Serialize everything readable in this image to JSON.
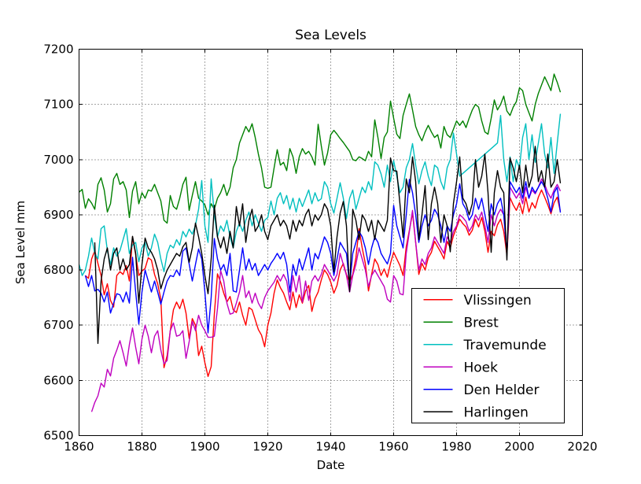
{
  "figure": {
    "title": "Sea Levels",
    "xlabel": "Date",
    "ylabel": "Sea Level mm"
  },
  "chart_data": {
    "type": "line",
    "title": "Sea Levels",
    "xlabel": "Date",
    "ylabel": "Sea Level mm",
    "xlim": [
      1860,
      2020
    ],
    "ylim": [
      6500,
      7200
    ],
    "xticks": [
      1860,
      1880,
      1900,
      1920,
      1940,
      1960,
      1980,
      2000,
      2020
    ],
    "yticks": [
      6500,
      6600,
      6700,
      6800,
      6900,
      7000,
      7100,
      7200
    ],
    "grid": true,
    "grid_style": "dotted",
    "legend_position": "lower right inside",
    "series": [
      {
        "name": "Vlissingen",
        "color": "#ff0000",
        "start_year": 1862,
        "values": [
          6790,
          6785,
          6820,
          6835,
          6812,
          6790,
          6755,
          6775,
          6745,
          6733,
          6790,
          6797,
          6792,
          6808,
          6780,
          6860,
          6828,
          6790,
          6798,
          6803,
          6822,
          6818,
          6792,
          6775,
          6747,
          6623,
          6645,
          6690,
          6728,
          6742,
          6730,
          6747,
          6722,
          6676,
          6712,
          6700,
          6645,
          6662,
          6632,
          6607,
          6625,
          6720,
          6793,
          6778,
          6758,
          6742,
          6752,
          6728,
          6723,
          6742,
          6718,
          6700,
          6732,
          6728,
          6710,
          6692,
          6682,
          6661,
          6700,
          6722,
          6758,
          6782,
          6768,
          6758,
          6742,
          6728,
          6760,
          6732,
          6755,
          6740,
          6762,
          6772,
          6725,
          6748,
          6760,
          6782,
          6800,
          6792,
          6778,
          6758,
          6772,
          6800,
          6812,
          6792,
          6778,
          6792,
          6822,
          6875,
          6840,
          6812,
          6762,
          6792,
          6820,
          6810,
          6790,
          6802,
          6787,
          6812,
          6832,
          6820,
          6808,
          6790,
          6842,
          6872,
          6903,
          6850,
          6792,
          6812,
          6800,
          6822,
          6832,
          6852,
          6842,
          6832,
          6820,
          6852,
          6840,
          6862,
          6877,
          6892,
          6884,
          6878,
          6863,
          6872,
          6892,
          6878,
          6895,
          6870,
          6832,
          6870,
          6862,
          6882,
          6892,
          6870,
          6827,
          6931,
          6918,
          6908,
          6922,
          6902,
          6932,
          6905,
          6922,
          6912,
          6932,
          6945,
          6932,
          6918,
          6902,
          6922,
          6932,
          6906
        ]
      },
      {
        "name": "Brest",
        "color": "#008000",
        "start_year": 1860,
        "values": [
          6941,
          6946,
          6912,
          6929,
          6921,
          6910,
          6955,
          6967,
          6945,
          6905,
          6920,
          6965,
          6975,
          6955,
          6960,
          6945,
          6895,
          6943,
          6960,
          6920,
          6940,
          6930,
          6945,
          6943,
          6955,
          6940,
          6925,
          6890,
          6885,
          6935,
          6915,
          6910,
          6930,
          6955,
          6968,
          6908,
          6935,
          6960,
          6930,
          6925,
          6918,
          6900,
          6920,
          6910,
          6930,
          6940,
          6955,
          6935,
          6950,
          6985,
          7000,
          7030,
          7045,
          7060,
          7050,
          7065,
          7040,
          7010,
          6985,
          6950,
          6948,
          6950,
          6985,
          7018,
          6990,
          6995,
          6980,
          7020,
          7005,
          6975,
          7005,
          7020,
          7010,
          7015,
          7005,
          6990,
          7064,
          7025,
          6990,
          7012,
          7045,
          7053,
          7046,
          7038,
          7031,
          7023,
          7015,
          7000,
          6998,
          7005,
          7002,
          6998,
          7015,
          7005,
          7072,
          7040,
          7002,
          7040,
          7050,
          7106,
          7075,
          7046,
          7038,
          7080,
          7100,
          7119,
          7090,
          7060,
          7045,
          7034,
          7050,
          7062,
          7050,
          7040,
          7045,
          7021,
          7060,
          7045,
          7040,
          7055,
          7070,
          7062,
          7070,
          7058,
          7075,
          7090,
          7100,
          7095,
          7070,
          7050,
          7046,
          7075,
          7108,
          7090,
          7100,
          7115,
          7088,
          7080,
          7095,
          7105,
          7130,
          7125,
          7100,
          7085,
          7070,
          7100,
          7120,
          7135,
          7150,
          7138,
          7125,
          7155,
          7140,
          7122
        ]
      },
      {
        "name": "Travemunde",
        "color": "#00bfbf",
        "start_year": 1860,
        "values": [
          6810,
          6790,
          6800,
          6825,
          6858,
          6830,
          6820,
          6875,
          6880,
          6835,
          6810,
          6840,
          6825,
          6835,
          6855,
          6875,
          6830,
          6845,
          6850,
          6815,
          6840,
          6850,
          6825,
          6840,
          6865,
          6850,
          6820,
          6797,
          6830,
          6845,
          6840,
          6855,
          6845,
          6870,
          6860,
          6874,
          6865,
          6881,
          6910,
          6962,
          6880,
          6850,
          6965,
          6900,
          6860,
          6880,
          6870,
          6890,
          6860,
          6840,
          6870,
          6885,
          6870,
          6890,
          6905,
          6880,
          6900,
          6885,
          6870,
          6890,
          6895,
          6925,
          6900,
          6930,
          6940,
          6920,
          6935,
          6910,
          6930,
          6905,
          6930,
          6915,
          6930,
          6945,
          6920,
          6940,
          6925,
          6929,
          6960,
          6950,
          6920,
          6903,
          6930,
          6958,
          6930,
          6893,
          6930,
          6945,
          6910,
          6930,
          6950,
          6940,
          6960,
          6945,
          6996,
          6990,
          6974,
          6950,
          6990,
          6960,
          6998,
          6970,
          6940,
          6950,
          6985,
          7000,
          7029,
          6990,
          6956,
          6980,
          6996,
          6970,
          6953,
          6990,
          6985,
          6960,
          6946,
          6985,
          7000,
          7048,
          7010,
          6970,
          6975,
          6980,
          6985,
          6990,
          6995,
          7000,
          7005,
          7010,
          7015,
          7020,
          7025,
          7030,
          7080,
          7000,
          6960,
          7005,
          6960,
          7000,
          6985,
          7040,
          7065,
          7000,
          7045,
          6995,
          7030,
          7065,
          7010,
          6985,
          7040,
          6975,
          7030,
          7083
        ]
      },
      {
        "name": "Hoek",
        "color": "#bf00bf",
        "start_year": 1864,
        "values": [
          6543,
          6560,
          6572,
          6595,
          6588,
          6620,
          6608,
          6640,
          6655,
          6672,
          6650,
          6626,
          6665,
          6695,
          6660,
          6630,
          6675,
          6700,
          6680,
          6650,
          6680,
          6690,
          6655,
          6630,
          6636,
          6690,
          6704,
          6680,
          6682,
          6690,
          6640,
          6670,
          6707,
          6690,
          6718,
          6700,
          6690,
          6678,
          6678,
          6680,
          6730,
          6799,
          6780,
          6740,
          6720,
          6722,
          6740,
          6760,
          6790,
          6750,
          6762,
          6740,
          6758,
          6740,
          6730,
          6750,
          6762,
          6770,
          6778,
          6790,
          6780,
          6792,
          6780,
          6744,
          6790,
          6760,
          6790,
          6742,
          6780,
          6745,
          6780,
          6790,
          6780,
          6792,
          6810,
          6800,
          6790,
          6780,
          6792,
          6830,
          6810,
          6790,
          6760,
          6790,
          6810,
          6840,
          6820,
          6800,
          6770,
          6790,
          6800,
          6790,
          6780,
          6770,
          6747,
          6742,
          6790,
          6780,
          6757,
          6755,
          6830,
          6870,
          6908,
          6850,
          6800,
          6820,
          6810,
          6830,
          6840,
          6860,
          6850,
          6840,
          6830,
          6860,
          6850,
          6870,
          6880,
          6900,
          6895,
          6888,
          6870,
          6880,
          6900,
          6890,
          6905,
          6880,
          6850,
          6900,
          6880,
          6900,
          6910,
          6900,
          6830,
          6950,
          6940,
          6930,
          6940,
          6920,
          6950,
          6930,
          6945,
          6938,
          6950,
          6965,
          6955,
          6940,
          6930,
          6945,
          6955,
          6943
        ]
      },
      {
        "name": "Den Helder",
        "color": "#0000ff",
        "start_year": 1862,
        "values": [
          6790,
          6770,
          6790,
          6762,
          6765,
          6758,
          6742,
          6760,
          6722,
          6740,
          6757,
          6755,
          6742,
          6760,
          6740,
          6823,
          6760,
          6702,
          6760,
          6800,
          6780,
          6760,
          6780,
          6760,
          6738,
          6760,
          6780,
          6790,
          6788,
          6800,
          6790,
          6834,
          6840,
          6811,
          6780,
          6810,
          6838,
          6820,
          6760,
          6686,
          6750,
          6857,
          6820,
          6800,
          6810,
          6790,
          6830,
          6762,
          6760,
          6800,
          6840,
          6800,
          6820,
          6800,
          6812,
          6790,
          6800,
          6810,
          6800,
          6812,
          6820,
          6830,
          6820,
          6832,
          6810,
          6760,
          6810,
          6790,
          6820,
          6800,
          6820,
          6840,
          6800,
          6830,
          6820,
          6840,
          6860,
          6850,
          6830,
          6790,
          6820,
          6850,
          6840,
          6830,
          6771,
          6830,
          6850,
          6870,
          6860,
          6840,
          6810,
          6840,
          6860,
          6850,
          6830,
          6820,
          6811,
          6830,
          6917,
          6880,
          6860,
          6840,
          6900,
          6964,
          6940,
          6900,
          6850,
          6880,
          6900,
          6880,
          6890,
          6910,
          6900,
          6880,
          6850,
          6880,
          6870,
          6900,
          6920,
          6956,
          6920,
          6910,
          6890,
          6900,
          6930,
          6910,
          6930,
          6900,
          6870,
          6920,
          6900,
          6920,
          6930,
          6900,
          6830,
          6960,
          6950,
          6940,
          6950,
          6930,
          6960,
          6930,
          6950,
          6940,
          6950,
          6960,
          6950,
          6930,
          6905,
          6940,
          6950,
          6904
        ]
      },
      {
        "name": "Harlingen",
        "color": "#000000",
        "start_year": 1865,
        "values": [
          6850,
          6667,
          6780,
          6820,
          6840,
          6800,
          6830,
          6840,
          6800,
          6820,
          6800,
          6810,
          6861,
          6830,
          6740,
          6810,
          6858,
          6840,
          6832,
          6820,
          6800,
          6766,
          6785,
          6800,
          6810,
          6820,
          6830,
          6825,
          6842,
          6850,
          6814,
          6840,
          6885,
          6860,
          6830,
          6790,
          6757,
          6820,
          6917,
          6860,
          6840,
          6860,
          6830,
          6870,
          6840,
          6915,
          6880,
          6920,
          6850,
          6890,
          6910,
          6870,
          6880,
          6900,
          6870,
          6855,
          6880,
          6890,
          6900,
          6880,
          6890,
          6880,
          6856,
          6890,
          6870,
          6890,
          6880,
          6900,
          6910,
          6880,
          6900,
          6890,
          6900,
          6920,
          6910,
          6880,
          6797,
          6860,
          6903,
          6924,
          6880,
          6761,
          6910,
          6890,
          6855,
          6900,
          6890,
          6870,
          6890,
          6855,
          6890,
          6880,
          6870,
          6890,
          7003,
          6980,
          6979,
          6920,
          6859,
          6965,
          6940,
          7005,
          6960,
          6855,
          6900,
          6953,
          6855,
          6920,
          6950,
          6920,
          6850,
          6900,
          6880,
          6833,
          6920,
          6960,
          7005,
          6930,
          6920,
          6900,
          6920,
          7000,
          6950,
          6970,
          7010,
          6940,
          6832,
          6940,
          6980,
          6950,
          6940,
          6818,
          7003,
          6985,
          6960,
          6990,
          6940,
          6990,
          6950,
          6970,
          7024,
          6960,
          6980,
          6950,
          7010,
          6950,
          6960,
          7000,
          6957
        ]
      }
    ]
  }
}
